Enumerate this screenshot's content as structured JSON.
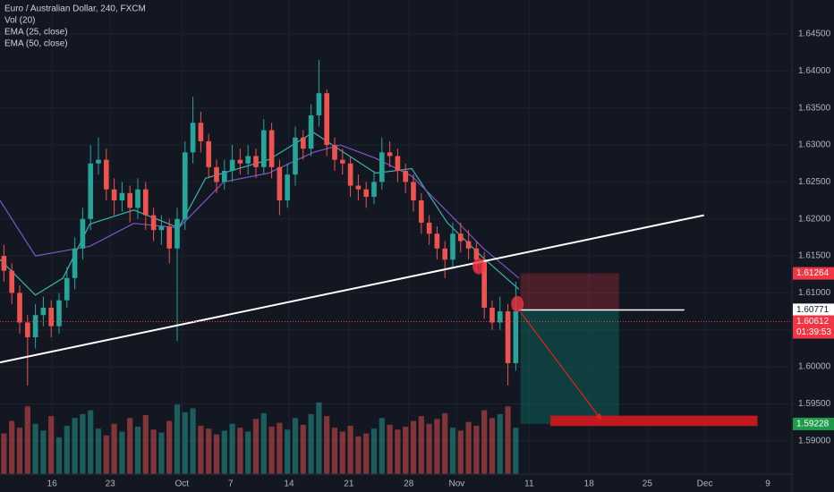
{
  "chart_data": {
    "type": "candlestick",
    "title": "Euro / Australian Dollar, 240, FXCM",
    "volume_name": "Vol (20)",
    "up_color": "#26a69a",
    "down_color": "#ef5350",
    "grid": true,
    "ylim": [
      1.5855,
      1.6496
    ],
    "xlim": [
      0,
      100.57
    ],
    "yticks": [
      {
        "value": 1.645,
        "label": "1.64500"
      },
      {
        "value": 1.64,
        "label": "1.64000"
      },
      {
        "value": 1.635,
        "label": "1.63500"
      },
      {
        "value": 1.63,
        "label": "1.63000"
      },
      {
        "value": 1.625,
        "label": "1.62500"
      },
      {
        "value": 1.62,
        "label": "1.62000"
      },
      {
        "value": 1.615,
        "label": "1.61500"
      },
      {
        "value": 1.61,
        "label": "1.61000"
      },
      {
        "value": 1.605,
        "label": "1.60500"
      },
      {
        "value": 1.6,
        "label": "1.60000"
      },
      {
        "value": 1.595,
        "label": "1.59500"
      },
      {
        "value": 1.59,
        "label": "1.59000"
      }
    ],
    "xticks": [
      {
        "value": 6.6,
        "label": "16"
      },
      {
        "value": 14.0,
        "label": "23"
      },
      {
        "value": 23.1,
        "label": "Oct"
      },
      {
        "value": 29.3,
        "label": "7"
      },
      {
        "value": 36.7,
        "label": "14"
      },
      {
        "value": 44.3,
        "label": "21"
      },
      {
        "value": 51.9,
        "label": "28"
      },
      {
        "value": 58.0,
        "label": "Nov"
      },
      {
        "value": 67.2,
        "label": "11"
      },
      {
        "value": 74.8,
        "label": "18"
      },
      {
        "value": 82.2,
        "label": "25"
      },
      {
        "value": 89.5,
        "label": "Dec"
      },
      {
        "value": 97.5,
        "label": "9"
      }
    ],
    "open": [
      1.615,
      1.613,
      1.61,
      1.606,
      1.604,
      1.607,
      1.608,
      1.6055,
      1.609,
      1.612,
      1.616,
      1.62,
      1.6275,
      1.628,
      1.624,
      1.6225,
      1.6235,
      1.6215,
      1.624,
      1.6205,
      1.6185,
      1.619,
      1.616,
      1.62,
      1.629,
      1.633,
      1.6305,
      1.627,
      1.625,
      1.6265,
      1.628,
      1.6275,
      1.6285,
      1.627,
      1.632,
      1.627,
      1.6225,
      1.626,
      1.631,
      1.6295,
      1.634,
      1.637,
      1.63,
      1.628,
      1.6275,
      1.6245,
      1.624,
      1.623,
      1.625,
      1.629,
      1.6285,
      1.6265,
      1.625,
      1.6225,
      1.6195,
      1.618,
      1.616,
      1.6145,
      1.618,
      1.617,
      1.616,
      1.6145,
      1.608,
      1.606,
      1.6075,
      1.6005
    ],
    "high": [
      1.6165,
      1.614,
      1.611,
      1.607,
      1.6085,
      1.6095,
      1.609,
      1.61,
      1.6135,
      1.6175,
      1.6215,
      1.63,
      1.631,
      1.6295,
      1.6255,
      1.625,
      1.6245,
      1.6255,
      1.625,
      1.6215,
      1.6205,
      1.62,
      1.6215,
      1.6305,
      1.6365,
      1.6345,
      1.6315,
      1.628,
      1.628,
      1.63,
      1.6295,
      1.63,
      1.6295,
      1.6335,
      1.633,
      1.628,
      1.6275,
      1.6325,
      1.632,
      1.6355,
      1.6415,
      1.6375,
      1.631,
      1.6295,
      1.6285,
      1.626,
      1.625,
      1.6265,
      1.631,
      1.6305,
      1.6295,
      1.6275,
      1.626,
      1.6235,
      1.6205,
      1.619,
      1.617,
      1.6195,
      1.6195,
      1.6185,
      1.617,
      1.6155,
      1.609,
      1.6095,
      1.6085,
      1.6115
    ],
    "low": [
      1.6115,
      1.6085,
      1.6045,
      1.5975,
      1.6025,
      1.6055,
      1.604,
      1.6045,
      1.608,
      1.6105,
      1.6145,
      1.6185,
      1.626,
      1.6225,
      1.6205,
      1.621,
      1.6195,
      1.62,
      1.6185,
      1.617,
      1.6165,
      1.614,
      1.6035,
      1.6185,
      1.6275,
      1.629,
      1.6255,
      1.6235,
      1.624,
      1.625,
      1.626,
      1.626,
      1.6255,
      1.626,
      1.6255,
      1.6205,
      1.6215,
      1.6245,
      1.628,
      1.6285,
      1.6325,
      1.6285,
      1.6265,
      1.626,
      1.623,
      1.6225,
      1.6215,
      1.622,
      1.624,
      1.627,
      1.625,
      1.6235,
      1.621,
      1.618,
      1.6165,
      1.6145,
      1.612,
      1.6135,
      1.6155,
      1.6145,
      1.613,
      1.6065,
      1.605,
      1.605,
      1.5975,
      1.5995
    ],
    "close": [
      1.613,
      1.61,
      1.606,
      1.604,
      1.607,
      1.608,
      1.6055,
      1.609,
      1.612,
      1.616,
      1.62,
      1.6275,
      1.628,
      1.624,
      1.6225,
      1.6235,
      1.6215,
      1.624,
      1.6205,
      1.6185,
      1.619,
      1.616,
      1.62,
      1.629,
      1.633,
      1.6305,
      1.627,
      1.625,
      1.6265,
      1.628,
      1.6275,
      1.6285,
      1.627,
      1.632,
      1.627,
      1.6225,
      1.626,
      1.631,
      1.6295,
      1.634,
      1.637,
      1.63,
      1.628,
      1.6275,
      1.6245,
      1.624,
      1.623,
      1.625,
      1.629,
      1.6285,
      1.6265,
      1.625,
      1.6225,
      1.6195,
      1.618,
      1.616,
      1.6145,
      1.618,
      1.617,
      1.616,
      1.6145,
      1.608,
      1.606,
      1.6075,
      1.6005,
      1.6075
    ],
    "volume": [
      42,
      55,
      48,
      70,
      52,
      45,
      60,
      38,
      50,
      58,
      62,
      66,
      47,
      40,
      52,
      44,
      58,
      49,
      61,
      46,
      43,
      55,
      72,
      64,
      68,
      50,
      47,
      41,
      45,
      52,
      48,
      44,
      57,
      63,
      49,
      53,
      46,
      58,
      51,
      62,
      74,
      60,
      48,
      44,
      50,
      39,
      42,
      47,
      58,
      51,
      46,
      49,
      55,
      60,
      52,
      57,
      63,
      48,
      45,
      54,
      50,
      66,
      58,
      62,
      70,
      48
    ],
    "series": [
      {
        "name": "EMA (25, close)",
        "color": "#3bb3b0",
        "x": [
          0,
          4.5,
          8,
          11.4,
          17,
          22.7,
          26.1,
          34.1,
          39.8,
          43.2,
          47.7,
          52.3,
          56.8,
          61.4,
          65.9
        ],
        "values": [
          1.6145,
          1.6097,
          1.612,
          1.6193,
          1.6212,
          1.6188,
          1.6255,
          1.628,
          1.6317,
          1.6293,
          1.6262,
          1.6268,
          1.6195,
          1.6147,
          1.6105
        ]
      },
      {
        "name": "EMA (50, close)",
        "color": "#7e57c2",
        "x": [
          0,
          4.5,
          11.4,
          17,
          22.7,
          28.4,
          34.1,
          39.8,
          43.2,
          47.7,
          52.3,
          56.8,
          61.4,
          65.9
        ],
        "values": [
          1.6225,
          1.615,
          1.6163,
          1.6194,
          1.6188,
          1.625,
          1.6262,
          1.629,
          1.63,
          1.6282,
          1.6258,
          1.621,
          1.616,
          1.612
        ]
      }
    ],
    "annotations": {
      "trendline": {
        "x": [
          0,
          89.4
        ],
        "y": [
          1.6006,
          1.6205
        ]
      },
      "entry_line": {
        "x": [
          65.9,
          86.9
        ],
        "y": 1.6077
      },
      "stop_zone": {
        "x": [
          66.1,
          78.6
        ],
        "y": [
          1.6077,
          1.61264
        ]
      },
      "target_zone": {
        "x": [
          66.1,
          78.6
        ],
        "y": [
          1.59228,
          1.6077
        ]
      },
      "arrow": {
        "x": [
          66.1,
          76.4
        ],
        "y": [
          1.6074,
          1.5928
        ]
      },
      "target_bar": {
        "x": [
          69.9,
          96.2
        ],
        "y": [
          1.592,
          1.5934
        ]
      },
      "circles": [
        {
          "x": 65.7,
          "y": 1.6085
        },
        {
          "x": 60.8,
          "y": 1.6136
        }
      ]
    },
    "current_price": {
      "value": 1.60612,
      "label": "1.60612",
      "countdown": "01:39:53",
      "color": "#f23645"
    },
    "price_labels": [
      {
        "value": 1.61264,
        "label": "1.61264",
        "color": "#f23645"
      },
      {
        "value": 1.60771,
        "label": "1.60771",
        "color": "#ffffff"
      },
      {
        "value": 1.59228,
        "label": "1.59228",
        "color": "#1e9a4a"
      }
    ]
  }
}
